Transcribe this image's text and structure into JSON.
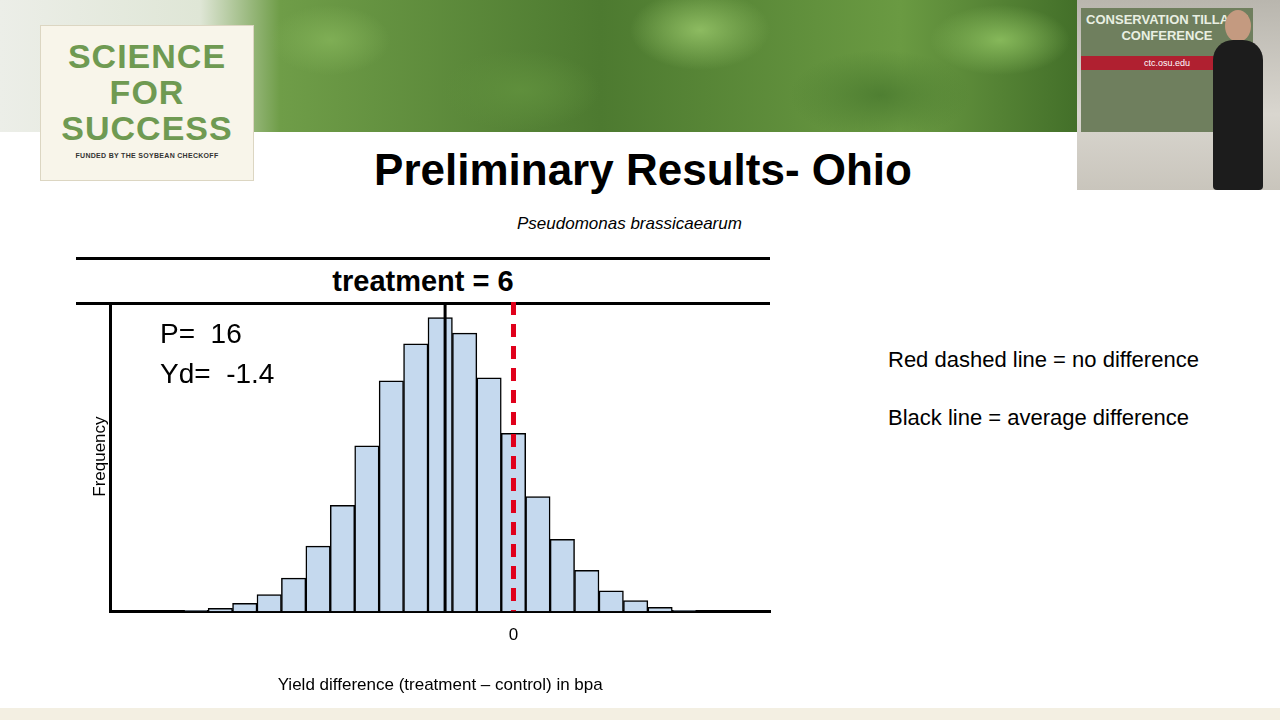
{
  "slide": {
    "logo": {
      "lines": [
        "SCIENCE",
        "FOR",
        "SUCCESS"
      ],
      "tagline": "FUNDED BY THE SOYBEAN CHECKOFF"
    },
    "video_inset": {
      "banner": [
        "CONSERVATION TILLAGE",
        "CONFERENCE"
      ],
      "url": "ctc.osu.edu"
    },
    "title": "Preliminary Results- Ohio",
    "notes": [
      "Red dashed line = no difference",
      "Black line = average difference"
    ]
  },
  "chart_data": {
    "type": "histogram",
    "subtitle": "Pseudomonas brassicaearum",
    "panel_title": "treatment = 6",
    "x_label": "Yield difference (treatment – control) in bpa",
    "y_label": "Frequency",
    "bins": [
      -6.75,
      -6.25,
      -5.75,
      -5.25,
      -4.75,
      -4.25,
      -3.75,
      -3.25,
      -2.75,
      -2.25,
      -1.75,
      -1.25,
      -0.75,
      -0.25,
      0.25,
      0.75,
      1.25,
      1.75,
      2.25,
      2.75,
      3.25,
      3.75
    ],
    "values": [
      1,
      3,
      8,
      17,
      34,
      67,
      109,
      170,
      237,
      275,
      302,
      286,
      240,
      183,
      118,
      74,
      42,
      21,
      11,
      4,
      1
    ],
    "color": "#c5d9ee",
    "xlim": [
      -8.25,
      5.25
    ],
    "xticks": [
      0
    ],
    "ylim": [
      0,
      318
    ],
    "tick_labels": "x",
    "grid": false,
    "reference_lines": [
      {
        "value": 0,
        "color": "#e0001b",
        "line_style": "dashed"
      },
      {
        "value": -1.4,
        "color": "#000000",
        "line_style": "solid"
      }
    ],
    "annotations": [
      {
        "text": "P=",
        "value": 16
      },
      {
        "text": "Yd=",
        "value": -1.4
      }
    ]
  }
}
